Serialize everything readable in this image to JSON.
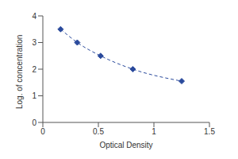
{
  "chart_data": {
    "type": "line",
    "x_label": "Optical Density",
    "y_label": "Log. of concentration",
    "x": [
      0.16,
      0.31,
      0.52,
      0.81,
      1.25
    ],
    "values": [
      3.5,
      3.0,
      2.5,
      2.0,
      1.55
    ],
    "color": "#2a4a9c",
    "marker": "diamond",
    "line_style": "dashed",
    "xlim": [
      0,
      1.5
    ],
    "xticks": [
      0,
      0.5,
      1,
      1.5
    ],
    "ylim": [
      0,
      4
    ],
    "yticks": [
      0,
      1,
      2,
      3,
      4
    ],
    "grid": false
  }
}
